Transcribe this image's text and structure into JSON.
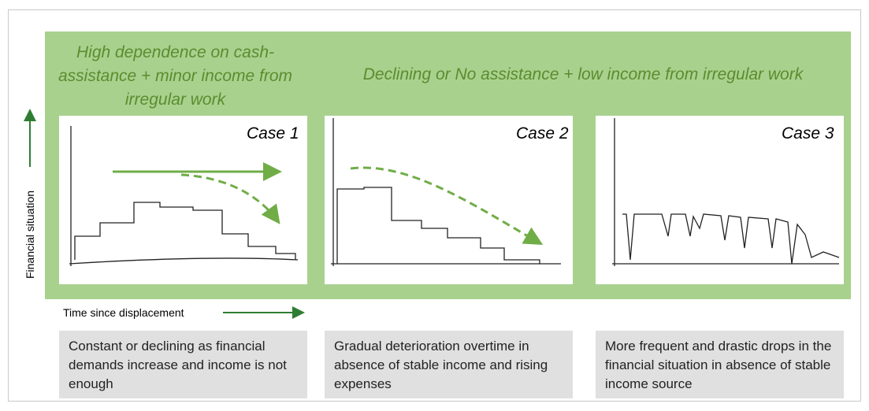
{
  "header": {
    "left": "High dependence on cash-assistance + minor income from irregular work",
    "right": "Declining or No assistance + low income from irregular work"
  },
  "axes": {
    "y": "Financial situation",
    "x": "Time since displacement"
  },
  "cases": [
    {
      "label": "Case 1",
      "description": "Constant or declining as financial demands increase and income is not enough"
    },
    {
      "label": "Case 2",
      "description": "Gradual deterioration overtime in absence of stable income and rising expenses"
    },
    {
      "label": "Case 3",
      "description": "More frequent and drastic drops in the financial situation in absence of stable income source"
    }
  ]
}
